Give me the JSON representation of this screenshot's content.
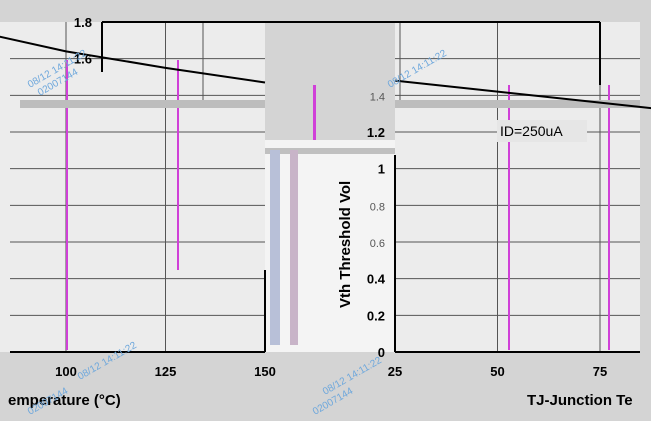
{
  "chart_data": [
    {
      "type": "line",
      "panel": "left",
      "title": "",
      "xlabel": "emperature (°C)",
      "ylabel": "",
      "x_ticks": [
        "100",
        "125",
        "150"
      ],
      "y_ticks": [
        "1.8",
        "1.6"
      ],
      "xlim": [
        75,
        150
      ],
      "series": [
        {
          "x": [
            75,
            100,
            125,
            150
          ],
          "y": [
            1.76,
            1.64,
            1.55,
            1.47
          ]
        }
      ]
    },
    {
      "type": "line",
      "panel": "right",
      "title": "",
      "xlabel": "TJ-Junction Te",
      "ylabel": "Vth Threshold Vol",
      "x_ticks": [
        "25",
        "50",
        "75"
      ],
      "y_ticks": [
        "0",
        "0.2",
        "0.4",
        "0.6",
        "0.8",
        "1",
        "1.2",
        "1.4"
      ],
      "ylim": [
        0,
        1.8
      ],
      "xlim": [
        25,
        100
      ],
      "annotation": "ID=250uA",
      "series": [
        {
          "x": [
            25,
            50,
            75,
            100
          ],
          "y": [
            1.48,
            1.42,
            1.36,
            1.3
          ]
        }
      ]
    }
  ],
  "watermark": [
    "08/12 14:11:22",
    "02007144"
  ],
  "colors": {
    "background": "#d4d4d4",
    "plot_area": "#ffffff",
    "line": "#000000",
    "grid": "#555555",
    "glitch_magenta": "#d040d8",
    "watermark": "#6fa8dc"
  }
}
